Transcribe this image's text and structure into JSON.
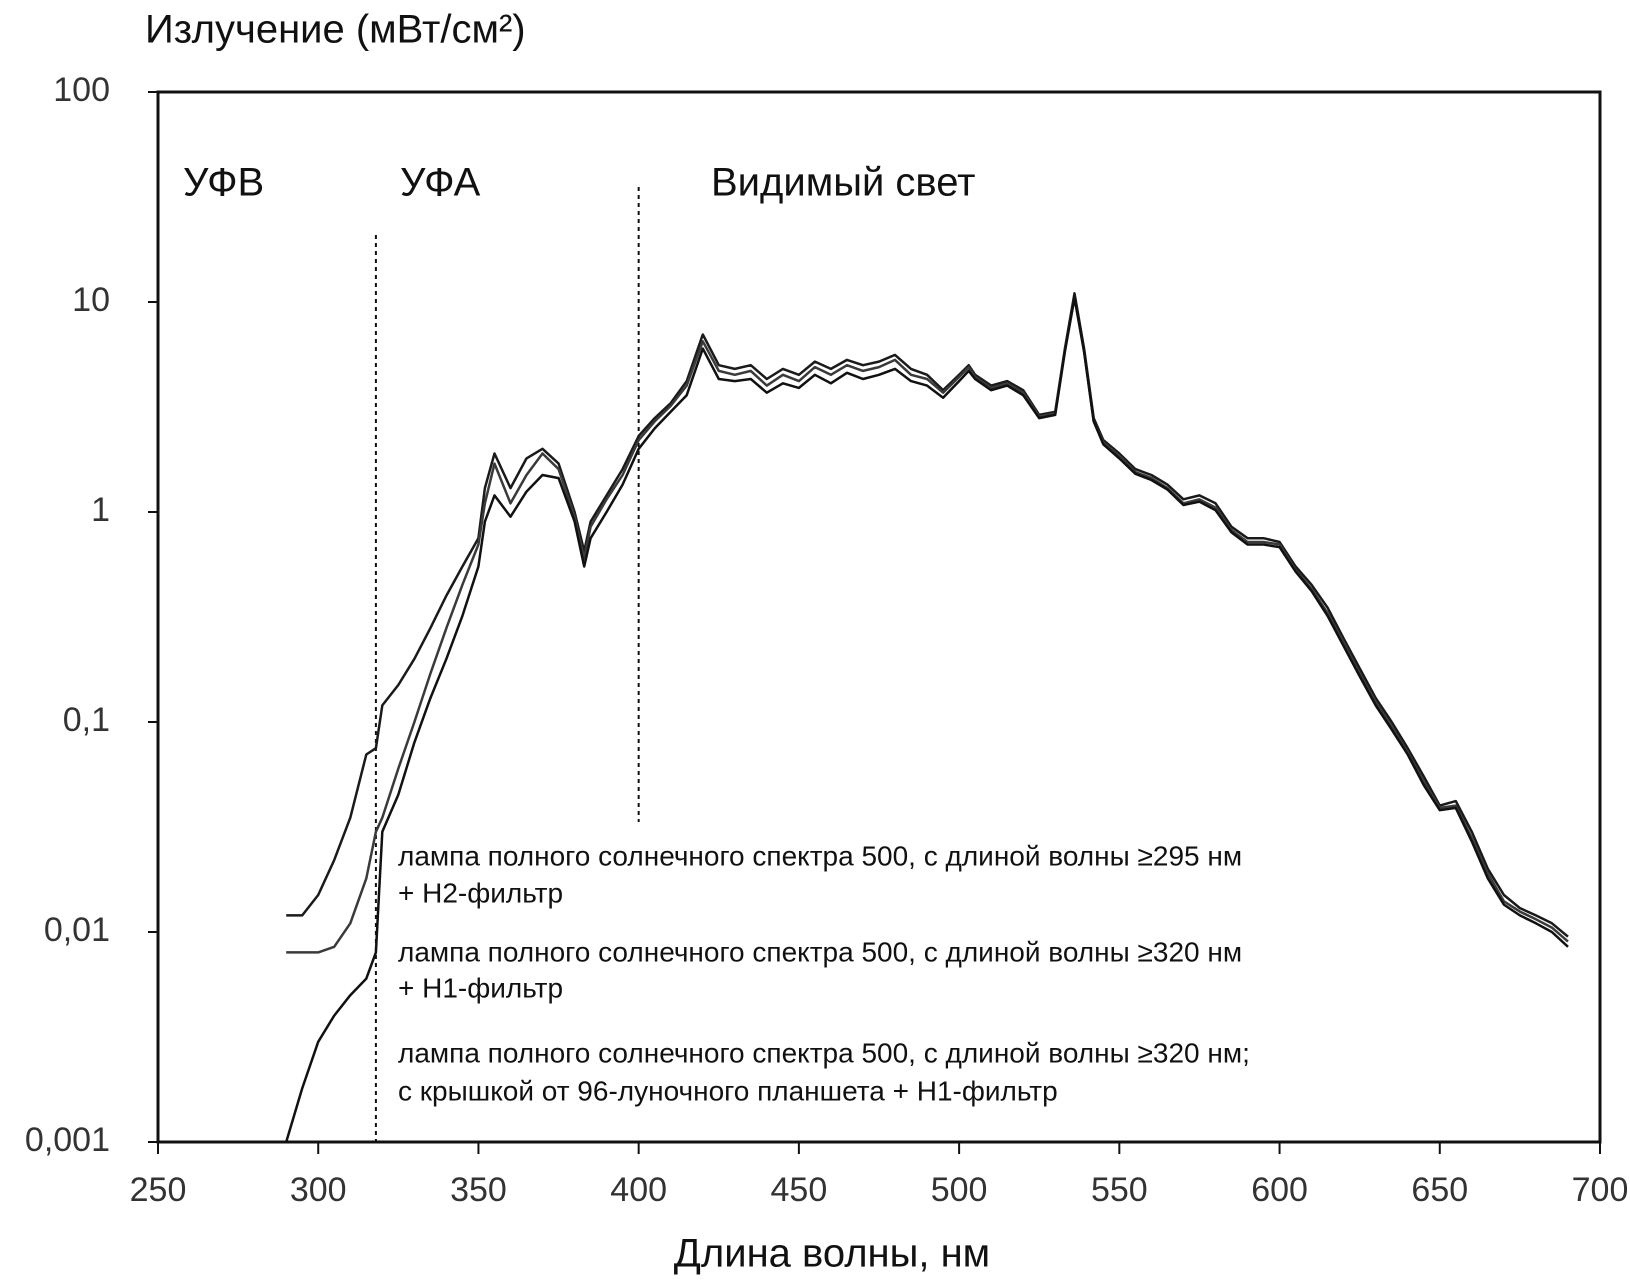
{
  "chart_data": {
    "type": "line",
    "ylabel": "Излучение (мВт/см²)",
    "xlabel": "Длина волны, нм",
    "yscale": "log",
    "xlim": [
      250,
      700
    ],
    "xticks": [
      250,
      300,
      350,
      400,
      450,
      500,
      550,
      600,
      650,
      700
    ],
    "ylim": [
      0.001,
      100
    ],
    "yticks": [
      {
        "value": 0.001,
        "label": "0,001"
      },
      {
        "value": 0.01,
        "label": "0,01"
      },
      {
        "value": 0.1,
        "label": "0,1"
      },
      1,
      10,
      100
    ],
    "annotations": [
      {
        "text": "УФВ"
      },
      {
        "text": "УФА"
      },
      {
        "text": "Видимый свет"
      }
    ],
    "vlines": [
      318,
      400
    ],
    "x": [
      290,
      295,
      300,
      305,
      310,
      315,
      318,
      320,
      325,
      330,
      335,
      340,
      345,
      350,
      352,
      355,
      360,
      365,
      370,
      375,
      380,
      383,
      385,
      390,
      395,
      400,
      405,
      410,
      415,
      420,
      425,
      430,
      435,
      440,
      445,
      450,
      455,
      460,
      465,
      470,
      475,
      480,
      485,
      490,
      495,
      500,
      503,
      505,
      510,
      515,
      520,
      525,
      530,
      533,
      536,
      539,
      542,
      545,
      550,
      555,
      560,
      565,
      570,
      575,
      580,
      585,
      590,
      595,
      600,
      605,
      610,
      615,
      620,
      625,
      630,
      635,
      640,
      645,
      650,
      655,
      660,
      665,
      670,
      675,
      680,
      685,
      690
    ],
    "series": [
      {
        "name": [
          "лампа полного солнечного спектра 500, с длиной волны ≥295 нм",
          "+ Н2-фильтр"
        ],
        "color": "#1a1a1a",
        "values": [
          0.012,
          0.012,
          0.015,
          0.022,
          0.035,
          0.07,
          0.075,
          0.12,
          0.15,
          0.2,
          0.28,
          0.4,
          0.55,
          0.75,
          1.3,
          1.9,
          1.3,
          1.8,
          2.0,
          1.7,
          1.0,
          0.65,
          0.9,
          1.2,
          1.6,
          2.3,
          2.8,
          3.3,
          4.2,
          7.0,
          5.0,
          4.8,
          5.0,
          4.3,
          4.8,
          4.5,
          5.2,
          4.8,
          5.3,
          5.0,
          5.2,
          5.6,
          4.8,
          4.5,
          3.8,
          4.5,
          5.0,
          4.5,
          4.0,
          4.2,
          3.8,
          2.9,
          3.0,
          6,
          11,
          6,
          2.8,
          2.2,
          1.9,
          1.6,
          1.5,
          1.35,
          1.15,
          1.2,
          1.1,
          0.85,
          0.75,
          0.75,
          0.72,
          0.55,
          0.45,
          0.35,
          0.25,
          0.18,
          0.13,
          0.1,
          0.075,
          0.055,
          0.04,
          0.042,
          0.03,
          0.02,
          0.015,
          0.013,
          0.012,
          0.011,
          0.0095
        ]
      },
      {
        "name": [
          "лампа полного солнечного спектра 500, с длиной волны ≥320 нм",
          "+ Н1-фильтр"
        ],
        "color": "#3a3a3a",
        "values": [
          0.008,
          0.008,
          0.008,
          0.0085,
          0.011,
          0.018,
          0.03,
          0.035,
          0.06,
          0.1,
          0.17,
          0.28,
          0.45,
          0.7,
          1.1,
          1.7,
          1.1,
          1.5,
          1.9,
          1.6,
          0.95,
          0.6,
          0.85,
          1.15,
          1.5,
          2.2,
          2.7,
          3.2,
          4.0,
          6.5,
          4.7,
          4.5,
          4.7,
          4.0,
          4.5,
          4.2,
          4.9,
          4.5,
          5.0,
          4.7,
          4.9,
          5.3,
          4.5,
          4.3,
          3.7,
          4.4,
          4.9,
          4.4,
          3.9,
          4.1,
          3.7,
          2.85,
          2.95,
          5.9,
          10.5,
          5.8,
          2.7,
          2.15,
          1.85,
          1.55,
          1.45,
          1.3,
          1.1,
          1.15,
          1.05,
          0.82,
          0.72,
          0.72,
          0.7,
          0.53,
          0.43,
          0.33,
          0.24,
          0.17,
          0.125,
          0.095,
          0.072,
          0.052,
          0.039,
          0.04,
          0.028,
          0.019,
          0.014,
          0.0125,
          0.0115,
          0.0105,
          0.009
        ]
      },
      {
        "name": [
          "лампа полного солнечного спектра 500, с длиной волны ≥320 нм;",
          "с крышкой от 96-луночного планшета + Н1-фильтр"
        ],
        "color": "#111111",
        "values": [
          0.001,
          0.0018,
          0.003,
          0.004,
          0.005,
          0.006,
          0.008,
          0.03,
          0.045,
          0.08,
          0.13,
          0.2,
          0.32,
          0.55,
          0.9,
          1.2,
          0.95,
          1.25,
          1.5,
          1.45,
          0.9,
          0.55,
          0.75,
          1.0,
          1.35,
          2.0,
          2.5,
          3.0,
          3.6,
          6.0,
          4.3,
          4.2,
          4.3,
          3.7,
          4.1,
          3.9,
          4.5,
          4.1,
          4.6,
          4.3,
          4.5,
          4.8,
          4.2,
          4.0,
          3.5,
          4.2,
          4.7,
          4.3,
          3.8,
          4.0,
          3.6,
          2.8,
          2.9,
          5.8,
          10.5,
          5.8,
          2.7,
          2.1,
          1.8,
          1.52,
          1.42,
          1.28,
          1.08,
          1.12,
          1.02,
          0.8,
          0.7,
          0.7,
          0.68,
          0.52,
          0.42,
          0.32,
          0.23,
          0.165,
          0.12,
          0.092,
          0.07,
          0.05,
          0.038,
          0.039,
          0.027,
          0.018,
          0.0135,
          0.012,
          0.011,
          0.01,
          0.0085
        ]
      }
    ]
  }
}
